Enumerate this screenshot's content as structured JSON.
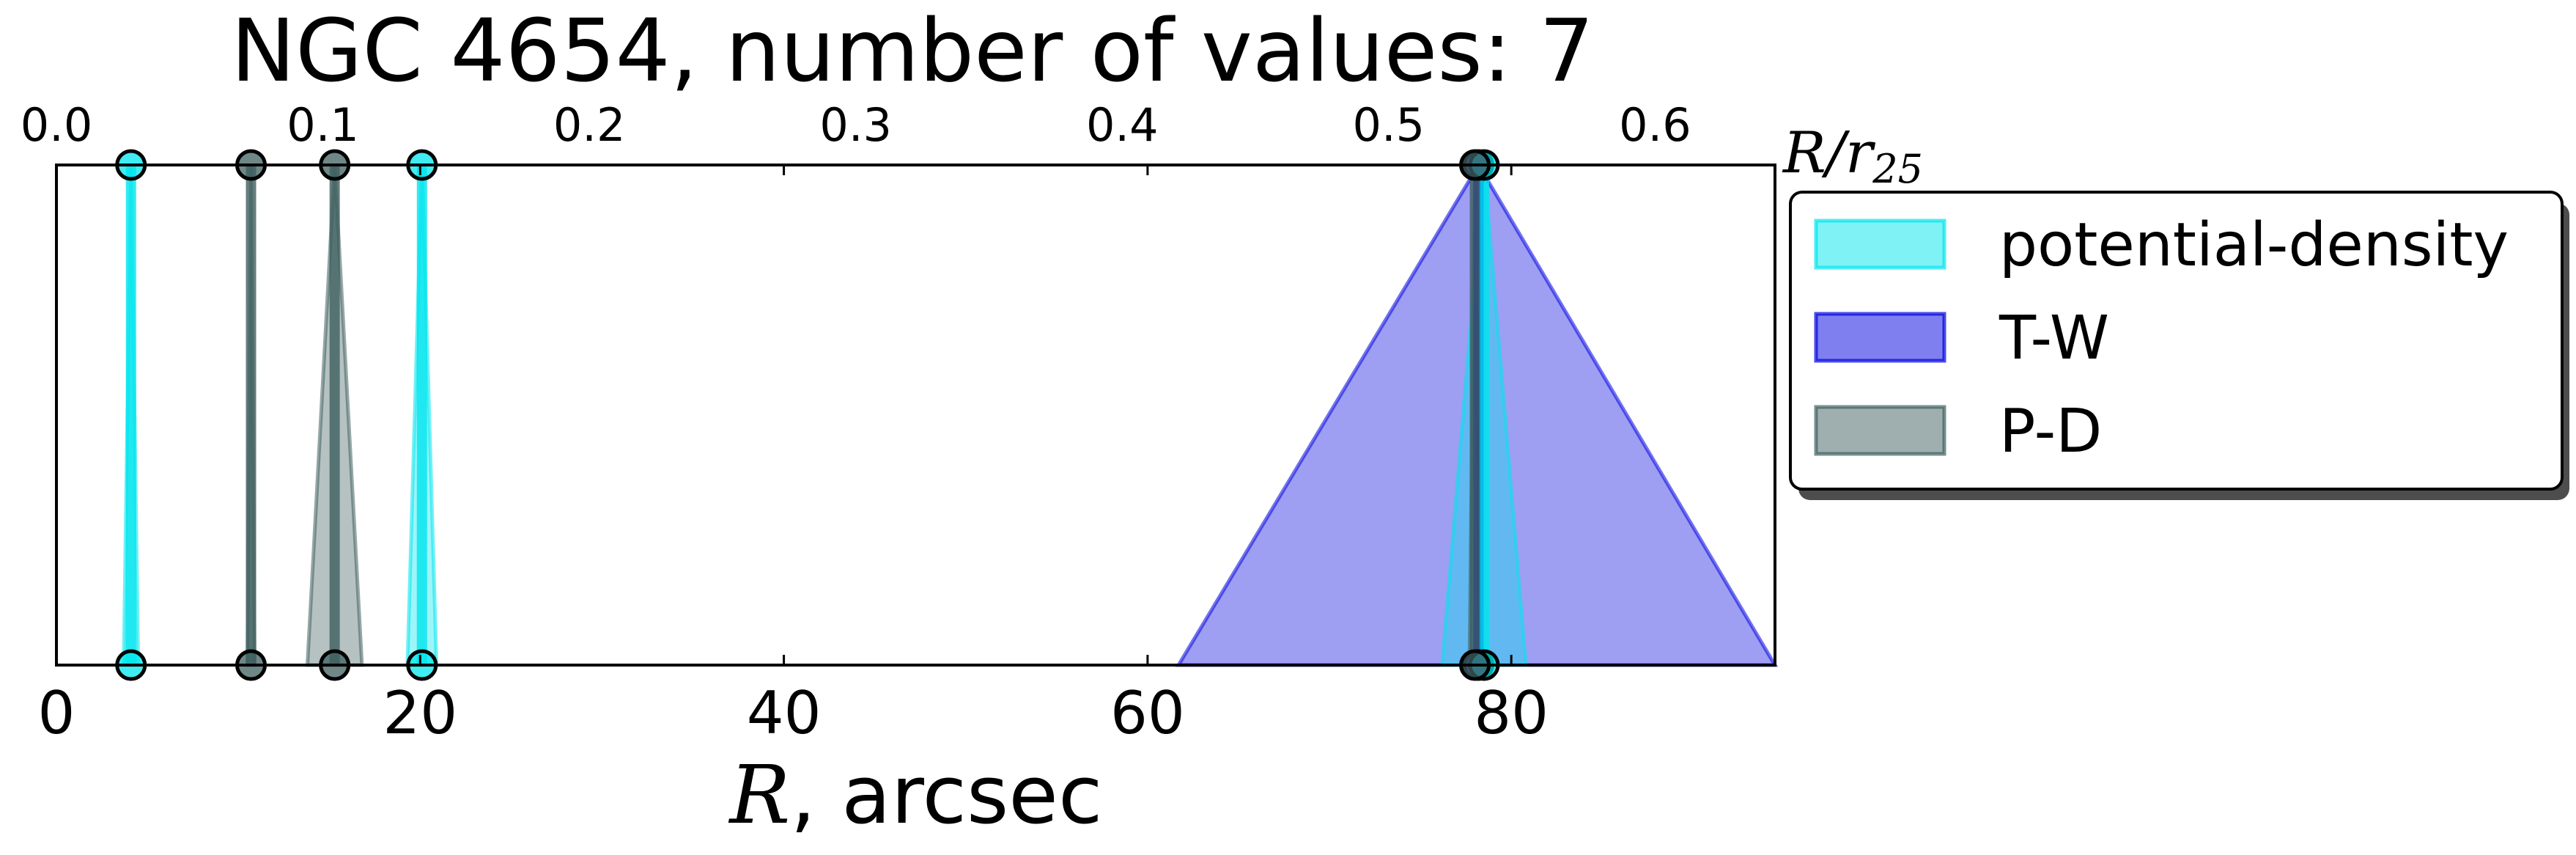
{
  "chart_data": {
    "type": "scatter",
    "title": "NGC 4654, number of values: 7",
    "xlabel_symbol": "R",
    "xlabel_unit": ", arcsec",
    "top_axis_label_symbol": "R/r",
    "top_axis_label_subscript": "25",
    "xlim": [
      0,
      94.5
    ],
    "x_ticks": [
      "0",
      "20",
      "40",
      "60",
      "80"
    ],
    "top_xlim": [
      0,
      0.645
    ],
    "top_ticks": [
      "0.0",
      "0.1",
      "0.2",
      "0.3",
      "0.4",
      "0.5",
      "0.6"
    ],
    "legend_position": "right, outside axes",
    "legend": [
      {
        "label": "potential-density",
        "color": "#00e5ee"
      },
      {
        "label": "T-W",
        "color": "#0000e0"
      },
      {
        "label": "P-D",
        "color": "#3f5f5f"
      }
    ],
    "series": [
      {
        "name": "potential-density",
        "color": "#00e5ee",
        "markers": [
          {
            "x": 4.1,
            "err": 0.4
          },
          {
            "x": 20.1,
            "err": 0.8
          },
          {
            "x": 78.5,
            "err": 2.3
          }
        ]
      },
      {
        "name": "T-W",
        "color": "#0000e0",
        "markers": [
          {
            "x": 78.2,
            "err": 16.5
          }
        ]
      },
      {
        "name": "P-D",
        "color": "#3f5f5f",
        "markers": [
          {
            "x": 10.7,
            "err": 0.2
          },
          {
            "x": 15.3,
            "err": 1.5
          },
          {
            "x": 78.0,
            "err": 0.3
          }
        ]
      }
    ]
  }
}
